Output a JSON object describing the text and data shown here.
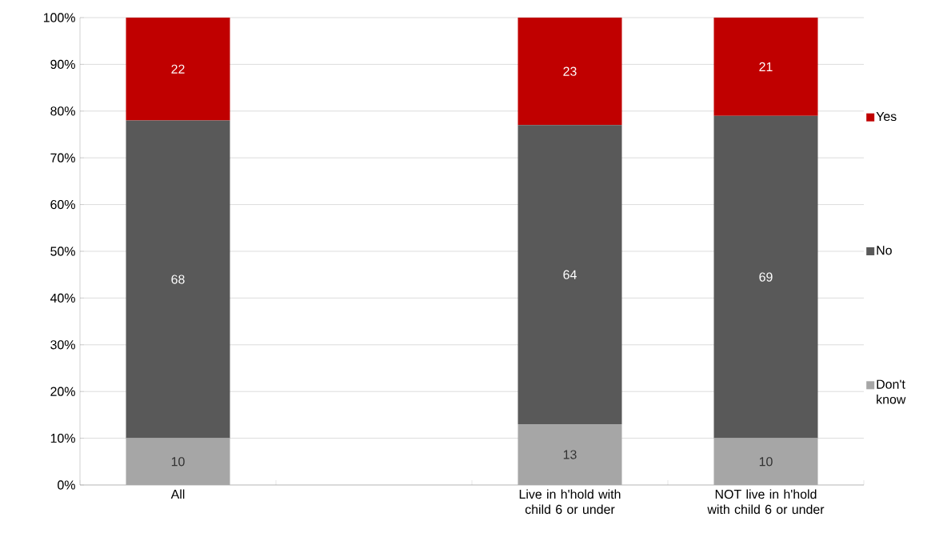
{
  "chart_data": {
    "type": "bar",
    "stacked": true,
    "categories": [
      "All",
      null,
      "Live in h'hold with child 6 or under",
      "NOT live in h'hold with child 6 or under"
    ],
    "series": [
      {
        "name": "Don't know",
        "color": "#a6a6a6",
        "values": [
          10,
          null,
          13,
          10
        ]
      },
      {
        "name": "No",
        "color": "#595959",
        "values": [
          68,
          null,
          64,
          69
        ]
      },
      {
        "name": "Yes",
        "color": "#c00000",
        "values": [
          22,
          null,
          23,
          21
        ]
      }
    ],
    "ylim": [
      0,
      100
    ],
    "yticks": [
      {
        "value": 0,
        "label": "0%"
      },
      {
        "value": 10,
        "label": "10%"
      },
      {
        "value": 20,
        "label": "20%"
      },
      {
        "value": 30,
        "label": "30%"
      },
      {
        "value": 40,
        "label": "40%"
      },
      {
        "value": 50,
        "label": "50%"
      },
      {
        "value": 60,
        "label": "60%"
      },
      {
        "value": 70,
        "label": "70%"
      },
      {
        "value": 80,
        "label": "80%"
      },
      {
        "value": 90,
        "label": "90%"
      },
      {
        "value": 100,
        "label": "100%"
      }
    ],
    "grid": "y",
    "legend": "right",
    "data_labels": true
  }
}
